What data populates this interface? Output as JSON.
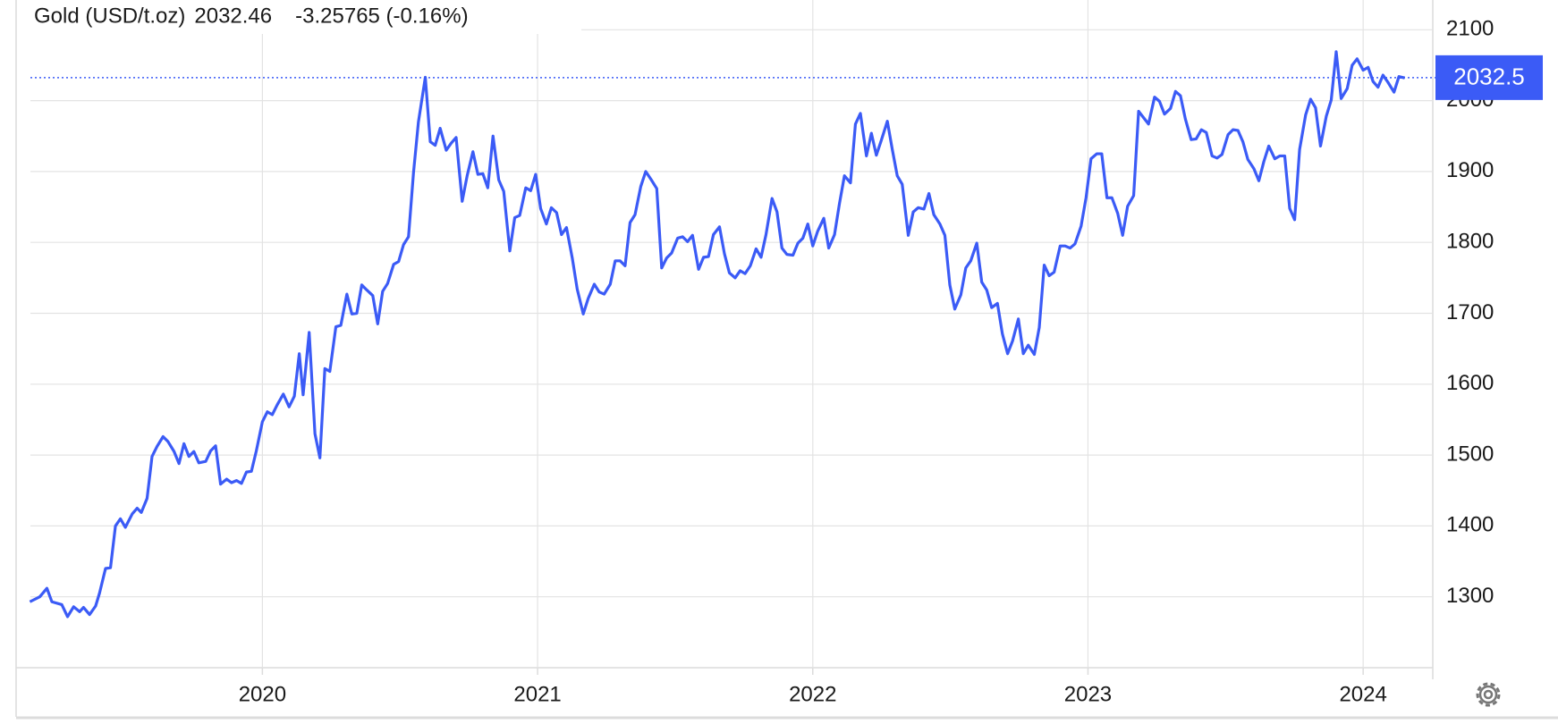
{
  "chart_data": {
    "type": "line",
    "title": "Gold (USD/t.oz)",
    "change": {
      "value": -3.25765,
      "label": "-3.25765 (-0.16%)"
    },
    "last_value": {
      "value": 2032.46,
      "label": "2032.5"
    },
    "last_color": "#3b5bf6",
    "change_color": "#e0524f",
    "grid": true,
    "xlim": [
      2019.105,
      2024.253
    ],
    "xticks": [
      2020,
      2021,
      2022,
      2023,
      2024
    ],
    "ylim": [
      1200,
      2142
    ],
    "yticks": [
      1300,
      1400,
      1500,
      1600,
      1700,
      1800,
      1900,
      2000,
      2100
    ],
    "x": [
      2019.155,
      2019.191,
      2019.217,
      2019.235,
      2019.271,
      2019.292,
      2019.314,
      2019.336,
      2019.35,
      2019.372,
      2019.394,
      2019.408,
      2019.43,
      2019.448,
      2019.466,
      2019.484,
      2019.502,
      2019.527,
      2019.545,
      2019.56,
      2019.581,
      2019.599,
      2019.617,
      2019.639,
      2019.657,
      2019.679,
      2019.697,
      2019.715,
      2019.733,
      2019.751,
      2019.769,
      2019.794,
      2019.812,
      2019.83,
      2019.848,
      2019.87,
      2019.888,
      2019.906,
      2019.924,
      2019.942,
      2019.96,
      2019.978,
      2020,
      2020.018,
      2020.036,
      2020.054,
      2020.076,
      2020.097,
      2020.116,
      2020.134,
      2020.148,
      2020.17,
      2020.191,
      2020.209,
      2020.227,
      2020.245,
      2020.267,
      2020.285,
      2020.307,
      2020.325,
      2020.343,
      2020.361,
      2020.379,
      2020.401,
      2020.419,
      2020.437,
      2020.455,
      2020.477,
      2020.495,
      2020.513,
      2020.531,
      2020.549,
      2020.567,
      2020.592,
      2020.61,
      2020.628,
      2020.646,
      2020.668,
      2020.686,
      2020.704,
      2020.726,
      2020.744,
      2020.765,
      2020.783,
      2020.801,
      2020.819,
      2020.838,
      2020.859,
      2020.877,
      2020.899,
      2020.917,
      2020.935,
      2020.957,
      2020.975,
      2020.993,
      2021.011,
      2021.032,
      2021.05,
      2021.069,
      2021.087,
      2021.105,
      2021.126,
      2021.144,
      2021.166,
      2021.184,
      2021.206,
      2021.224,
      2021.242,
      2021.264,
      2021.282,
      2021.3,
      2021.318,
      2021.336,
      2021.354,
      2021.375,
      2021.393,
      2021.412,
      2021.433,
      2021.451,
      2021.469,
      2021.487,
      2021.509,
      2021.527,
      2021.545,
      2021.563,
      2021.585,
      2021.603,
      2021.621,
      2021.639,
      2021.661,
      2021.679,
      2021.697,
      2021.718,
      2021.736,
      2021.754,
      2021.773,
      2021.794,
      2021.812,
      2021.83,
      2021.852,
      2021.87,
      2021.888,
      2021.906,
      2021.928,
      2021.946,
      2021.964,
      2021.982,
      2022,
      2022.018,
      2022.04,
      2022.058,
      2022.079,
      2022.097,
      2022.115,
      2022.137,
      2022.155,
      2022.173,
      2022.195,
      2022.213,
      2022.231,
      2022.249,
      2022.271,
      2022.289,
      2022.307,
      2022.325,
      2022.347,
      2022.365,
      2022.383,
      2022.404,
      2022.422,
      2022.44,
      2022.462,
      2022.48,
      2022.498,
      2022.516,
      2022.538,
      2022.556,
      2022.574,
      2022.596,
      2022.614,
      2022.632,
      2022.65,
      2022.671,
      2022.689,
      2022.708,
      2022.726,
      2022.747,
      2022.765,
      2022.783,
      2022.805,
      2022.823,
      2022.841,
      2022.859,
      2022.877,
      2022.899,
      2022.917,
      2022.935,
      2022.953,
      2022.975,
      2022.993,
      2023.011,
      2023.032,
      2023.05,
      2023.069,
      2023.087,
      2023.108,
      2023.126,
      2023.144,
      2023.166,
      2023.184,
      2023.202,
      2023.22,
      2023.242,
      2023.26,
      2023.278,
      2023.3,
      2023.318,
      2023.336,
      2023.354,
      2023.375,
      2023.393,
      2023.412,
      2023.43,
      2023.451,
      2023.469,
      2023.487,
      2023.509,
      2023.527,
      2023.545,
      2023.563,
      2023.581,
      2023.603,
      2023.621,
      2023.639,
      2023.657,
      2023.679,
      2023.697,
      2023.715,
      2023.733,
      2023.751,
      2023.769,
      2023.791,
      2023.809,
      2023.827,
      2023.845,
      2023.866,
      2023.884,
      2023.902,
      2023.92,
      2023.942,
      2023.96,
      2023.978,
      2024,
      2024.018,
      2024.036,
      2024.054,
      2024.072,
      2024.09,
      2024.112,
      2024.13,
      2024.151
    ],
    "series": [
      {
        "name": "Gold",
        "color": "#3b5bf6",
        "values": [
          1293,
          1300,
          1312,
          1293,
          1289,
          1272,
          1286,
          1279,
          1285,
          1275,
          1287,
          1305,
          1340,
          1341,
          1400,
          1410,
          1398,
          1417,
          1425,
          1419,
          1439,
          1498,
          1512,
          1526,
          1519,
          1505,
          1488,
          1516,
          1498,
          1505,
          1489,
          1491,
          1506,
          1513,
          1459,
          1466,
          1461,
          1464,
          1460,
          1476,
          1477,
          1506,
          1547,
          1561,
          1557,
          1571,
          1586,
          1568,
          1583,
          1643,
          1585,
          1673,
          1530,
          1496,
          1622,
          1618,
          1681,
          1683,
          1727,
          1699,
          1700,
          1740,
          1733,
          1725,
          1685,
          1731,
          1742,
          1769,
          1773,
          1797,
          1808,
          1898,
          1970,
          2033,
          1942,
          1937,
          1961,
          1930,
          1940,
          1948,
          1858,
          1894,
          1928,
          1896,
          1897,
          1877,
          1950,
          1888,
          1872,
          1788,
          1835,
          1838,
          1877,
          1873,
          1896,
          1848,
          1826,
          1849,
          1842,
          1811,
          1821,
          1778,
          1734,
          1699,
          1721,
          1741,
          1730,
          1727,
          1741,
          1774,
          1774,
          1767,
          1828,
          1839,
          1879,
          1900,
          1889,
          1876,
          1764,
          1778,
          1785,
          1806,
          1808,
          1801,
          1810,
          1762,
          1779,
          1780,
          1811,
          1822,
          1784,
          1757,
          1750,
          1760,
          1756,
          1767,
          1791,
          1779,
          1811,
          1862,
          1843,
          1792,
          1783,
          1782,
          1799,
          1806,
          1826,
          1795,
          1816,
          1834,
          1792,
          1811,
          1855,
          1894,
          1884,
          1967,
          1982,
          1922,
          1954,
          1923,
          1944,
          1971,
          1931,
          1894,
          1882,
          1810,
          1843,
          1849,
          1847,
          1869,
          1839,
          1826,
          1810,
          1740,
          1706,
          1726,
          1764,
          1774,
          1799,
          1744,
          1733,
          1708,
          1714,
          1671,
          1643,
          1661,
          1692,
          1643,
          1655,
          1642,
          1680,
          1768,
          1753,
          1758,
          1795,
          1795,
          1792,
          1798,
          1823,
          1863,
          1918,
          1925,
          1925,
          1863,
          1863,
          1841,
          1810,
          1851,
          1866,
          1985,
          1976,
          1967,
          2005,
          1999,
          1981,
          1989,
          2013,
          2007,
          1974,
          1945,
          1946,
          1959,
          1955,
          1922,
          1919,
          1924,
          1952,
          1959,
          1958,
          1942,
          1917,
          1904,
          1887,
          1914,
          1936,
          1918,
          1922,
          1922,
          1848,
          1832,
          1931,
          1980,
          2002,
          1990,
          1936,
          1978,
          2001,
          2069,
          2003,
          2017,
          2050,
          2059,
          2043,
          2047,
          2027,
          2019,
          2036,
          2026,
          2012,
          2034,
          2032
        ]
      }
    ]
  }
}
